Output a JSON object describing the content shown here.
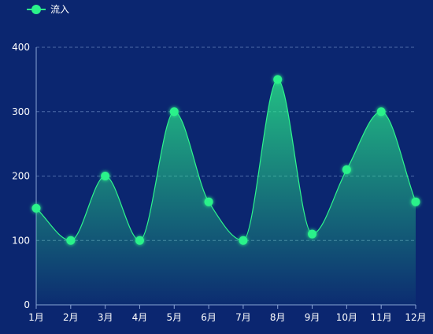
{
  "chart_data": {
    "type": "area",
    "title": "",
    "xlabel": "",
    "ylabel": "",
    "categories": [
      "1月",
      "2月",
      "3月",
      "4月",
      "5月",
      "6月",
      "7月",
      "8月",
      "9月",
      "10月",
      "11月",
      "12月"
    ],
    "series": [
      {
        "name": "流入",
        "values": [
          150,
          100,
          200,
          100,
          300,
          160,
          100,
          350,
          110,
          210,
          300,
          160
        ]
      }
    ],
    "ylim": [
      0,
      400
    ],
    "yticks": [
      0,
      100,
      200,
      300,
      400
    ],
    "grid": true,
    "smooth": true,
    "legend_position": "top-left"
  },
  "colors": {
    "background": "#0b2670",
    "line": "#2df58c",
    "marker": "#2af28a",
    "grid": "#4d6aa8",
    "axis": "#8aa4d6",
    "text": "#ffffff"
  }
}
